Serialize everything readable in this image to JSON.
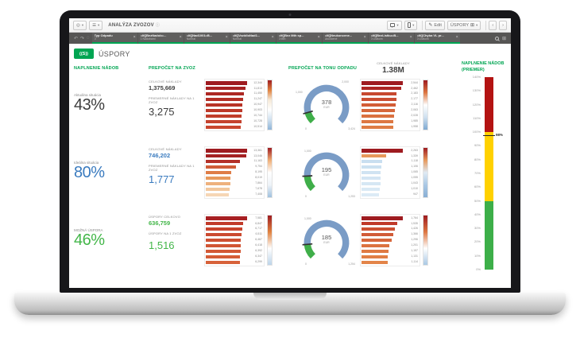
{
  "toolbar": {
    "app_title": "ANALÝZA ZVOZOV",
    "edit_label": "Edit",
    "sheet_label": "ÚSPORY"
  },
  "icons": {
    "compass": "◎",
    "menu": "☰",
    "caret": "▾",
    "info": "ⓘ",
    "edit_pencil": "✎",
    "sheet_grid": "⊞",
    "nav_prev": "‹",
    "nav_next": "›",
    "chip_close": "×",
    "undo": "↶",
    "redo": "↷",
    "lasso": "◌",
    "selections_grid": "⊞"
  },
  "filter_bar": {
    "chips": [
      {
        "title": "Typ Odpadu",
        "subtitle": "0"
      },
      {
        "title": "=If([BezNadob=...",
        "subtitle": "1 Nádobami"
      },
      {
        "title": "=If([Nad1001=B...",
        "subtitle": "Normal"
      },
      {
        "title": "=If([VozidloNad1...",
        "subtitle": "Normal"
      },
      {
        "title": "=If([Bez Mth sp...",
        "subtitle": "0 Mth"
      },
      {
        "title": "=If([Neukoncene...",
        "subtitle": "Ukončené"
      },
      {
        "title": "=If([BezListku=B...",
        "subtitle": "0 Listkom"
      },
      {
        "title": "=If([Chyba VL pr...",
        "subtitle": "0 Listkom"
      }
    ]
  },
  "header": {
    "logo_text": "((S))",
    "title": "ÚSPORY"
  },
  "section_headers": {
    "col1": "NAPLNENIE NÁDOB",
    "col2": "PREPOČET NA ZVOZ",
    "col3": "PREPOČET NA TONU ODPADU",
    "col5_line1": "NAPLNENIE NÁDOB",
    "col5_line2": "(PRIEMER)"
  },
  "col4_kpi": {
    "label": "CELKOVÉ NÁKLADY",
    "value": "1.38M"
  },
  "rows": [
    {
      "situation_label": "Aktuálna situácia",
      "situation_value": "43%",
      "value_color": "#3d3d3d",
      "metric1_label": "CELKOVÉ NÁKLADY",
      "metric1_value": "1,375,669",
      "metric2_label": "PRIEMERNÉ NÁKLADY NA 1 ZVOZ",
      "metric2_value": "3,275"
    },
    {
      "situation_label": "Ideálna situácia",
      "situation_value": "80%",
      "value_color": "#3a7bbf",
      "metric1_label": "CELKOVÉ NÁKLADY",
      "metric1_value": "746,202",
      "metric2_label": "PRIEMERNÉ NÁKLADY NA 1 ZVOZ",
      "metric2_value": "1,777"
    },
    {
      "situation_label": "MOŽNÁ ÚSPORA",
      "situation_value": "46%",
      "value_color": "#43b649",
      "metric1_label": "ÚSPORY CELKOVO",
      "metric1_value": "636,759",
      "metric2_label": "ÚSPORY NA 1 ZVOZ",
      "metric2_value": "1,516"
    }
  ],
  "colors": {
    "accent_green": "#00a552",
    "kpi_blue": "#3a7bbf",
    "kpi_green": "#43b649",
    "gauge_blue": "#7a9cc6",
    "gauge_green": "#3fae49",
    "filterbar_bg": "#565554"
  },
  "chart_data": [
    {
      "name": "naklady-na-zvoz-aktualne",
      "type": "bar",
      "orientation": "horizontal",
      "values": [
        12344,
        11813,
        11450,
        11247,
        10947,
        10903,
        10744,
        10728,
        10514
      ],
      "colors": [
        "#9e1b20",
        "#a62122",
        "#ad2823",
        "#b32e25",
        "#b83427",
        "#bd3929",
        "#c13e2b",
        "#c5422d",
        "#c9462e"
      ],
      "legend_gradient": [
        "#9e1b20",
        "#e0823f",
        "#f6ead8",
        "#ffffff",
        "#cfe0ef",
        "#8fb4d8"
      ]
    },
    {
      "name": "naklady-na-zvoz-idealne",
      "type": "bar",
      "orientation": "horizontal",
      "values": [
        13361,
        13046,
        11163,
        9754,
        8195,
        8019,
        7864,
        7678,
        7408
      ],
      "colors": [
        "#9e1b20",
        "#a42022",
        "#b43028",
        "#d05d38",
        "#df7d47",
        "#e7995c",
        "#eeb17d",
        "#f2c79d",
        "#f6d6b5"
      ],
      "legend_gradient": [
        "#9e1b20",
        "#efae76",
        "#ffffff",
        "#eef3f8",
        "#9fc0de"
      ]
    },
    {
      "name": "uspory-na-zvoz",
      "type": "bar",
      "orientation": "horizontal",
      "values": [
        7581,
        6847,
        6717,
        6511,
        6467,
        6418,
        6392,
        6347,
        6299
      ],
      "colors": [
        "#a71f22",
        "#c13b2a",
        "#c7432d",
        "#cb4a30",
        "#ce5032",
        "#d15534",
        "#d35936",
        "#d55d37",
        "#d76139"
      ],
      "legend_gradient": [
        "#9e1b20",
        "#e0823f",
        "#ffffff",
        "#bcd4e9"
      ]
    },
    {
      "name": "gauge-na-tonu-aktualne",
      "type": "gauge",
      "value": 378,
      "unit": "EUR",
      "min": 0,
      "max": 3424,
      "min_label": "0",
      "max_label": "3,424",
      "mid_labels": [
        "1,000",
        "2,000"
      ]
    },
    {
      "name": "gauge-na-tonu-idealne",
      "type": "gauge",
      "value": 195,
      "unit": "EUR",
      "min": 0,
      "max": 1253,
      "min_label": "0",
      "max_label": "1,253",
      "mid_labels": [
        "1,000"
      ]
    },
    {
      "name": "gauge-na-tonu-uspora",
      "type": "gauge",
      "value": 185,
      "unit": "EUR",
      "min": 0,
      "max": 1254,
      "min_label": "0",
      "max_label": "1,254",
      "mid_labels": [
        "1,000"
      ]
    },
    {
      "name": "celkove-naklady-aktualne",
      "type": "bar",
      "orientation": "horizontal",
      "values": [
        2544,
        2462,
        2183,
        2177,
        2116,
        2063,
        2028,
        1985,
        1958
      ],
      "colors": [
        "#9e1b20",
        "#ac2523",
        "#c74930",
        "#ca4e32",
        "#d25d37",
        "#d6673b",
        "#da703f",
        "#dd7742",
        "#df7c44"
      ],
      "legend_gradient": [
        "#9e1b20",
        "#dd7742",
        "#ffffff",
        "#cfe0ef",
        "#7fa9d1"
      ]
    },
    {
      "name": "celkove-naklady-idealne",
      "type": "bar",
      "orientation": "horizontal",
      "values": [
        2263,
        1339,
        1118,
        1106,
        1065,
        1055,
        1043,
        1010,
        947
      ],
      "colors": [
        "#9e1b20",
        "#e7995c",
        "#c9dff0",
        "#cce1f1",
        "#d0e3f2",
        "#d3e5f3",
        "#d6e7f4",
        "#d9e9f5",
        "#dcebf6"
      ],
      "legend_gradient": [
        "#9e1b20",
        "#e7995c",
        "#dfeaf4",
        "#aac8e4",
        "#89afd4"
      ]
    },
    {
      "name": "celkove-naklady-uspora",
      "type": "bar",
      "orientation": "horizontal",
      "values": [
        1764,
        1535,
        1426,
        1366,
        1296,
        1201,
        1157,
        1131,
        1114
      ],
      "colors": [
        "#9e1b20",
        "#c03929",
        "#cb4f32",
        "#d15b37",
        "#d7673b",
        "#dc7340",
        "#df7a43",
        "#e17f46",
        "#e38448"
      ],
      "legend_gradient": [
        "#9e1b20",
        "#dd7742",
        "#ffffff",
        "#aac8e4"
      ]
    },
    {
      "name": "naplnenie-nadob-priemer",
      "type": "vertical_gauge",
      "min": 0,
      "max": 140,
      "unit": "%",
      "ticks": [
        "140%",
        "130%",
        "120%",
        "110%",
        "100%",
        "90%",
        "80%",
        "70%",
        "60%",
        "50%",
        "40%",
        "30%",
        "20%",
        "10%",
        "0%"
      ],
      "segments": [
        {
          "from": 100,
          "to": 140,
          "color": "#b31312"
        },
        {
          "from": 50,
          "to": 100,
          "color": "#ffd100"
        },
        {
          "from": 0,
          "to": 50,
          "color": "#3daf49"
        }
      ],
      "marker_value": 98,
      "marker_label": "98%"
    }
  ]
}
